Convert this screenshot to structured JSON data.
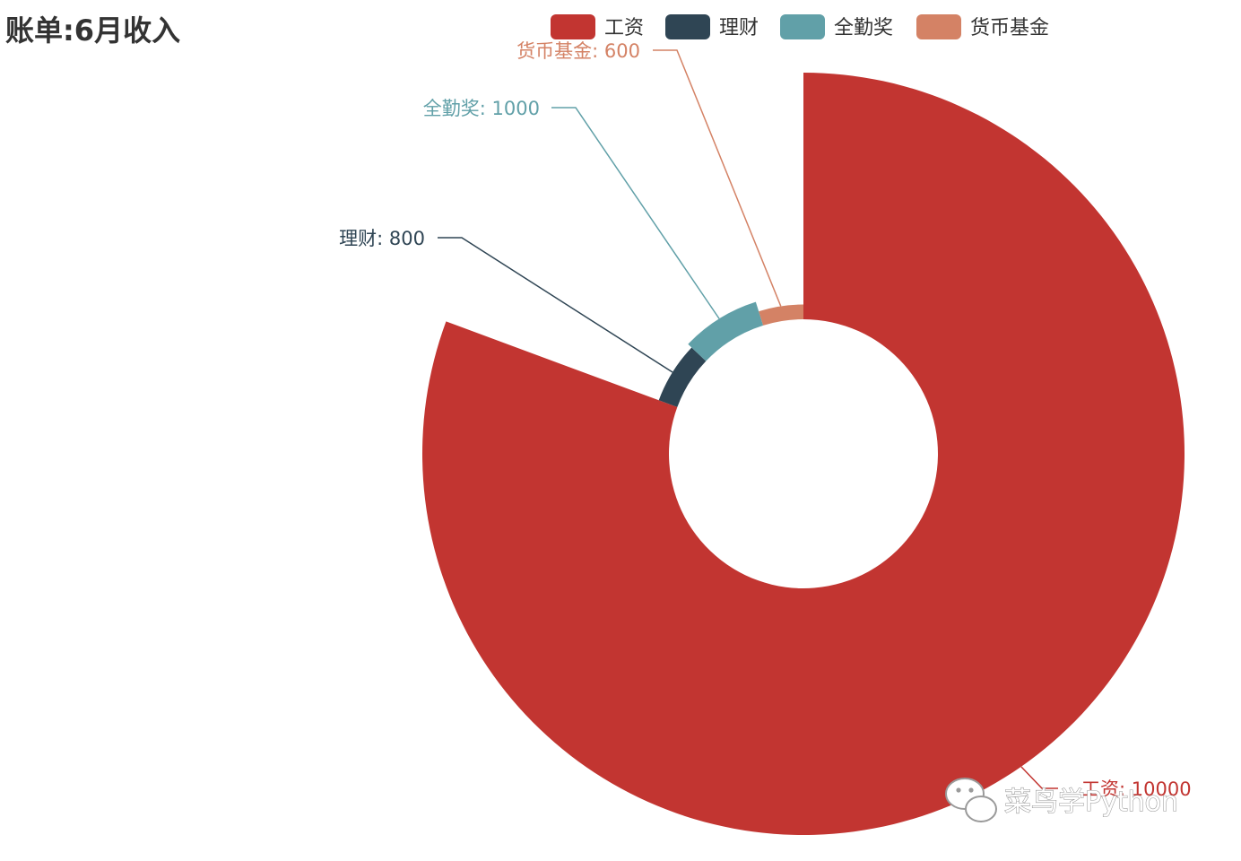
{
  "chart_data": {
    "type": "pie",
    "title": "账单:6月收入",
    "legend_position": "top-right",
    "series": [
      {
        "name": "工资",
        "value": 10000,
        "color": "#c23531"
      },
      {
        "name": "理财",
        "value": 800,
        "color": "#2f4554"
      },
      {
        "name": "全勤奖",
        "value": 1000,
        "color": "#61a0a8"
      },
      {
        "name": "货币基金",
        "value": 600,
        "color": "#d48265"
      }
    ],
    "labels": [
      "工资: 10000",
      "理财: 800",
      "全勤奖: 1000",
      "货币基金: 600"
    ]
  },
  "watermark": {
    "text": "菜鸟学Python",
    "icon": "wechat-icon"
  }
}
